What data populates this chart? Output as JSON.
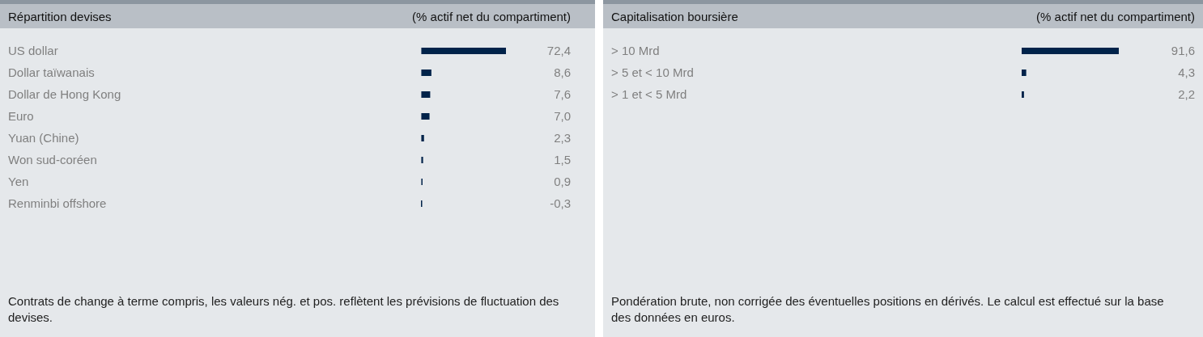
{
  "chart_data": [
    {
      "type": "bar",
      "orientation": "horizontal",
      "title": "Répartition devises",
      "subtitle": "(% actif net du compartiment)",
      "categories": [
        "US dollar",
        "Dollar taïwanais",
        "Dollar de Hong Kong",
        "Euro",
        "Yuan (Chine)",
        "Won sud-coréen",
        "Yen",
        "Renminbi offshore"
      ],
      "values": [
        72.4,
        8.6,
        7.6,
        7.0,
        2.3,
        1.5,
        0.9,
        -0.3
      ],
      "value_labels": [
        "72,4",
        "8,6",
        "7,6",
        "7,0",
        "2,3",
        "1,5",
        "0,9",
        "-0,3"
      ],
      "color": "#00234a",
      "annotations": [
        "Contrats de change à terme compris, les valeurs nég. et pos. reflètent les prévisions de fluctuation des devises."
      ]
    },
    {
      "type": "bar",
      "orientation": "horizontal",
      "title": "Capitalisation boursière",
      "subtitle": "(% actif net du compartiment)",
      "categories": [
        "> 10 Mrd",
        "> 5 et < 10 Mrd",
        "> 1 et < 5 Mrd"
      ],
      "values": [
        91.6,
        4.3,
        2.2
      ],
      "value_labels": [
        "91,6",
        "4,3",
        "2,2"
      ],
      "color": "#00234a",
      "annotations": [
        "Pondération brute, non corrigée des éventuelles positions en dérivés. Le calcul est effectué sur la base des données en euros."
      ]
    }
  ]
}
